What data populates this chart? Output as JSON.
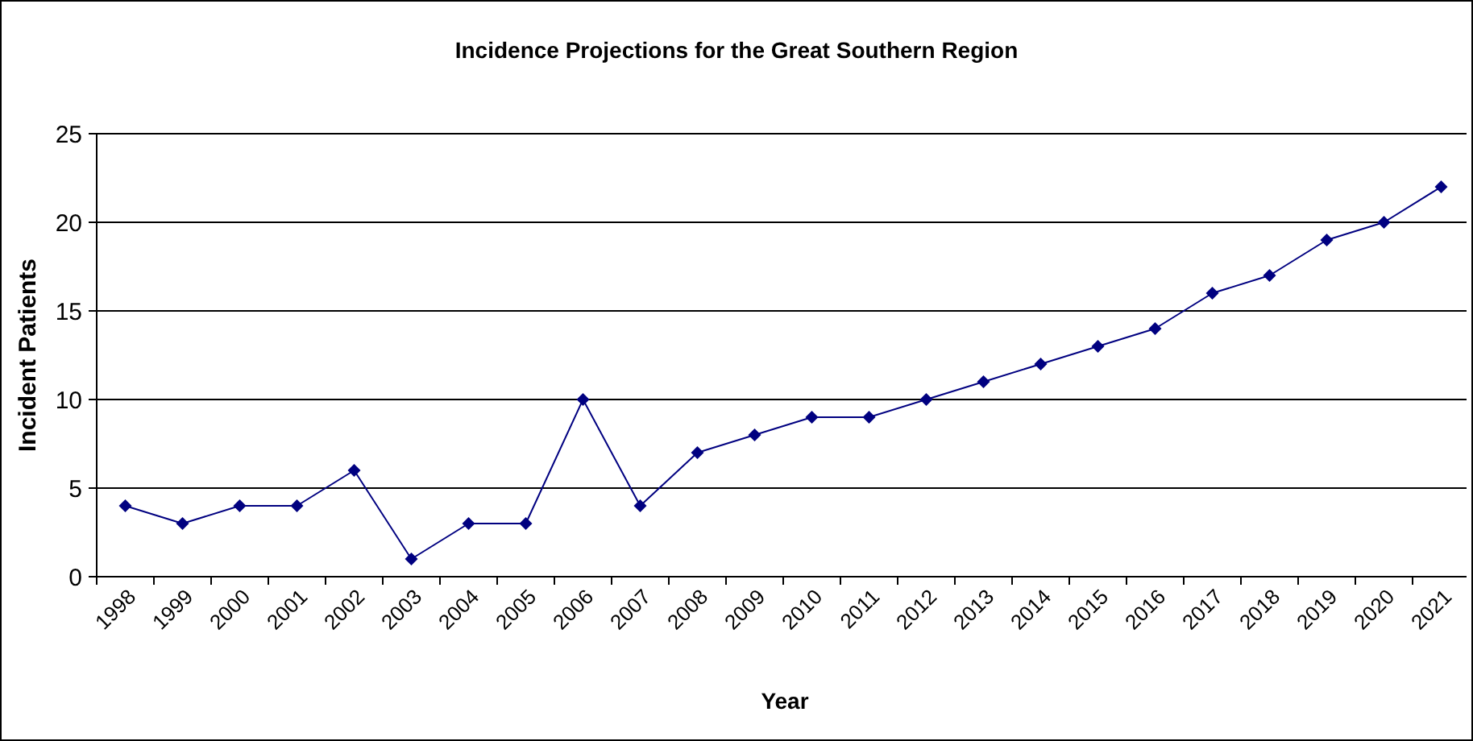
{
  "chart_data": {
    "type": "line",
    "title": "Incidence Projections for the Great Southern Region",
    "xlabel": "Year",
    "ylabel": "Incident Patients",
    "categories": [
      "1998",
      "1999",
      "2000",
      "2001",
      "2002",
      "2003",
      "2004",
      "2005",
      "2006",
      "2007",
      "2008",
      "2009",
      "2010",
      "2011",
      "2012",
      "2013",
      "2014",
      "2015",
      "2016",
      "2017",
      "2018",
      "2019",
      "2020",
      "2021"
    ],
    "series": [
      {
        "color": "#000080",
        "values": [
          4,
          3,
          4,
          4,
          6,
          1,
          3,
          3,
          10,
          4,
          7,
          8,
          9,
          9,
          10,
          11,
          12,
          13,
          14,
          16,
          17,
          19,
          20,
          22
        ]
      }
    ],
    "ylim": [
      0,
      25
    ],
    "yticks": [
      0,
      5,
      10,
      15,
      20,
      25
    ],
    "grid": "y",
    "marker": "diamond",
    "line_style": "solid"
  }
}
